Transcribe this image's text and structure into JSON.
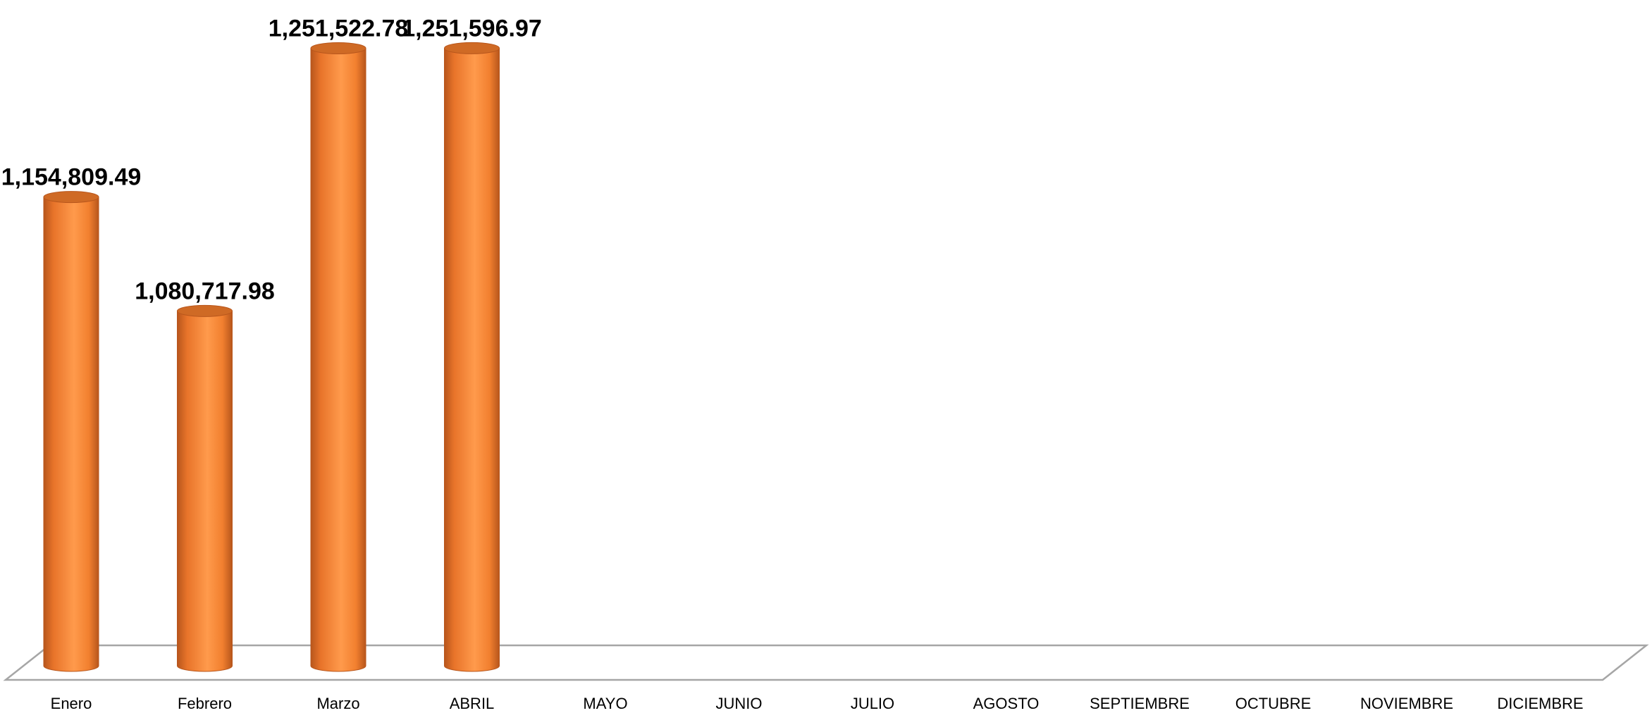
{
  "chart_data": {
    "type": "bar",
    "style": "3d-cylinder",
    "categories": [
      "Enero",
      "Febrero",
      "Marzo",
      "ABRIL",
      "MAYO",
      "JUNIO",
      "JULIO",
      "AGOSTO",
      "SEPTIEMBRE",
      "OCTUBRE",
      "NOVIEMBRE",
      "DICIEMBRE"
    ],
    "values": [
      1154809.49,
      1080717.98,
      1251522.78,
      1251596.97,
      null,
      null,
      null,
      null,
      null,
      null,
      null,
      null
    ],
    "data_labels": [
      "1,154,809.49",
      "1,080,717.98",
      "1,251,522.78",
      "1,251,596.97",
      "",
      "",
      "",
      "",
      "",
      "",
      "",
      ""
    ],
    "ylim": [
      850000,
      1260000
    ],
    "grid": false,
    "legend": "none",
    "colors": {
      "bar_face": "#F58232",
      "bar_light": "#FF9A4C",
      "bar_dark": "#B8561C",
      "bar_top": "#CF6A25",
      "floor_stroke": "#A6A6A6"
    }
  }
}
